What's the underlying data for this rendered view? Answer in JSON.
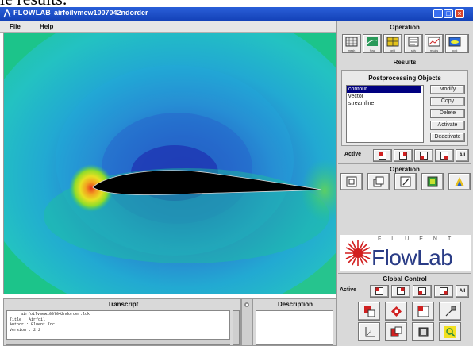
{
  "page": {
    "overlay_text": "ie results."
  },
  "window": {
    "app_title": "FLOWLAB",
    "document_title": "airfoilvmew1007042ndorder"
  },
  "menu": {
    "file": "File",
    "help": "Help"
  },
  "operation_top": {
    "heading": "Operation",
    "buttons": [
      "mesh",
      "flow",
      "grid",
      "solv",
      "results",
      "post"
    ]
  },
  "results": {
    "heading": "Results"
  },
  "postprocessing": {
    "heading": "Postprocessing Objects",
    "items": [
      "contour",
      "vector",
      "streamline"
    ],
    "selected": "contour",
    "buttons": {
      "modify": "Modify",
      "copy": "Copy",
      "delete": "Delete",
      "activate": "Activate",
      "deactivate": "Deactivate"
    }
  },
  "active_row": {
    "label": "Active",
    "all": "All"
  },
  "operation_mid": {
    "heading": "Operation"
  },
  "brand": {
    "company": "FLUENT",
    "product": "FlowLab"
  },
  "global_control": {
    "heading": "Global Control",
    "active": "Active",
    "all": "All"
  },
  "transcript": {
    "heading": "Transcript",
    "lines": [
      "airfoilvmew1007042ndorder.lok",
      "Title   : Airfoil",
      "Author  : Fluent Inc",
      "Version : 2.2"
    ]
  },
  "description": {
    "heading": "Description"
  },
  "colors": {
    "titlebar": "#1442b8",
    "panel": "#d9d9d9",
    "airfoil": "#000000",
    "field_base": "#19c48a"
  }
}
